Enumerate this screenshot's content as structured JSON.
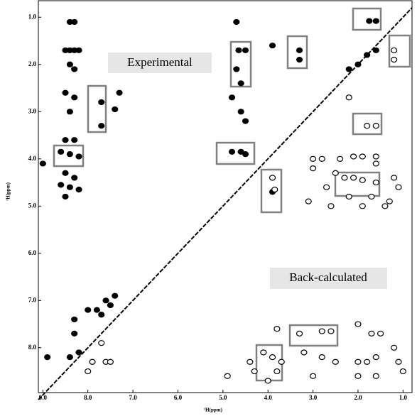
{
  "chart_data": {
    "type": "scatter",
    "xlabel": "¹H(ppm)",
    "ylabel": "¹H(ppm)",
    "annotations": [
      "Experimental",
      "Back-calculated"
    ],
    "xlim": [
      9.1,
      0.8
    ],
    "ylim": [
      0.65,
      8.95
    ],
    "xticks": [
      {
        "value": 9,
        "label": "9.0"
      },
      {
        "value": 8,
        "label": "8.0"
      },
      {
        "value": 7,
        "label": "7.0"
      },
      {
        "value": 6,
        "label": "6.0"
      },
      {
        "value": 5,
        "label": "5.0"
      },
      {
        "value": 4,
        "label": "4.0"
      },
      {
        "value": 3,
        "label": "3.0"
      },
      {
        "value": 2,
        "label": "2.0"
      },
      {
        "value": 1,
        "label": "1.0"
      }
    ],
    "yticks": [
      {
        "value": 1,
        "label": "1.0"
      },
      {
        "value": 2,
        "label": "2.0"
      },
      {
        "value": 3,
        "label": "3.0"
      },
      {
        "value": 4,
        "label": "4.0"
      },
      {
        "value": 5,
        "label": "5.0"
      },
      {
        "value": 6,
        "label": "6.0"
      },
      {
        "value": 7,
        "label": "7.0"
      },
      {
        "value": 8,
        "label": "8.0"
      }
    ],
    "series": [
      {
        "color": "#000000",
        "filled": true,
        "x": [
          8.4,
          8.3,
          8.5,
          8.4,
          8.3,
          8.2,
          8.4,
          8.3,
          8.5,
          8.3,
          8.4,
          8.5,
          8.3,
          8.6,
          8.4,
          8.2,
          8.5,
          8.3,
          8.6,
          8.4,
          8.2,
          8.5,
          7.7,
          7.7,
          7.3,
          7.4,
          9.0,
          4.7,
          4.65,
          4.5,
          4.7,
          4.6,
          4.8,
          4.6,
          4.5,
          4.8,
          4.6,
          4.5,
          3.9,
          3.3,
          3.3,
          1.75,
          1.6,
          2.0,
          2.2,
          1.8,
          1.6,
          3.9,
          7.8,
          8.0,
          8.3,
          8.3,
          8.2,
          8.4,
          8.9,
          7.6,
          7.5,
          7.7,
          7.4
        ],
        "y": [
          1.1,
          1.1,
          1.7,
          1.7,
          1.7,
          1.7,
          2.0,
          2.1,
          2.6,
          2.7,
          3.0,
          3.6,
          3.6,
          3.85,
          3.9,
          3.95,
          4.3,
          4.4,
          4.55,
          4.6,
          4.65,
          4.8,
          2.8,
          3.3,
          2.6,
          2.95,
          4.1,
          1.1,
          1.7,
          1.7,
          2.1,
          2.4,
          2.7,
          3.0,
          3.2,
          3.85,
          3.85,
          3.9,
          1.6,
          1.7,
          1.9,
          1.08,
          1.08,
          2.0,
          2.1,
          1.8,
          1.7,
          4.7,
          7.2,
          7.2,
          7.4,
          7.7,
          8.1,
          8.2,
          8.2,
          7.0,
          7.1,
          7.3,
          6.9
        ]
      },
      {
        "color": "#000000",
        "filled": false,
        "x": [
          1.2,
          1.2,
          1.8,
          1.6,
          3.0,
          2.8,
          2.4,
          2.1,
          1.9,
          1.6,
          1.6,
          3.0,
          2.5,
          2.3,
          2.1,
          1.9,
          1.6,
          1.2,
          1.1,
          2.7,
          2.2,
          1.7,
          1.3,
          3.9,
          3.85,
          3.1,
          2.6,
          1.9,
          1.4,
          2.2,
          3.8,
          3.3,
          2.8,
          2.6,
          2.0,
          1.7,
          1.5,
          4.1,
          3.9,
          3.7,
          3.2,
          2.8,
          2.5,
          2.0,
          1.8,
          1.6,
          1.2,
          1.1,
          1.0,
          4.4,
          4.3,
          3.0,
          2.0,
          1.6,
          7.9,
          7.6,
          7.5,
          8.0,
          7.7,
          4.9,
          4.0,
          3.8
        ],
        "y": [
          1.7,
          1.9,
          3.3,
          3.3,
          4.0,
          4.0,
          4.0,
          3.95,
          3.95,
          3.95,
          4.1,
          4.2,
          4.3,
          4.4,
          4.4,
          4.45,
          4.5,
          4.4,
          4.6,
          4.6,
          4.8,
          4.8,
          4.9,
          4.4,
          4.65,
          4.9,
          5.0,
          5.0,
          5.0,
          2.7,
          7.6,
          7.7,
          7.65,
          7.65,
          7.5,
          7.7,
          7.7,
          8.1,
          8.2,
          8.3,
          8.1,
          8.2,
          8.3,
          8.3,
          8.3,
          8.2,
          8.0,
          8.3,
          8.5,
          8.3,
          8.5,
          8.6,
          8.6,
          8.6,
          8.3,
          8.3,
          8.3,
          8.5,
          7.9,
          8.6,
          8.7,
          8.5
        ]
      }
    ]
  }
}
